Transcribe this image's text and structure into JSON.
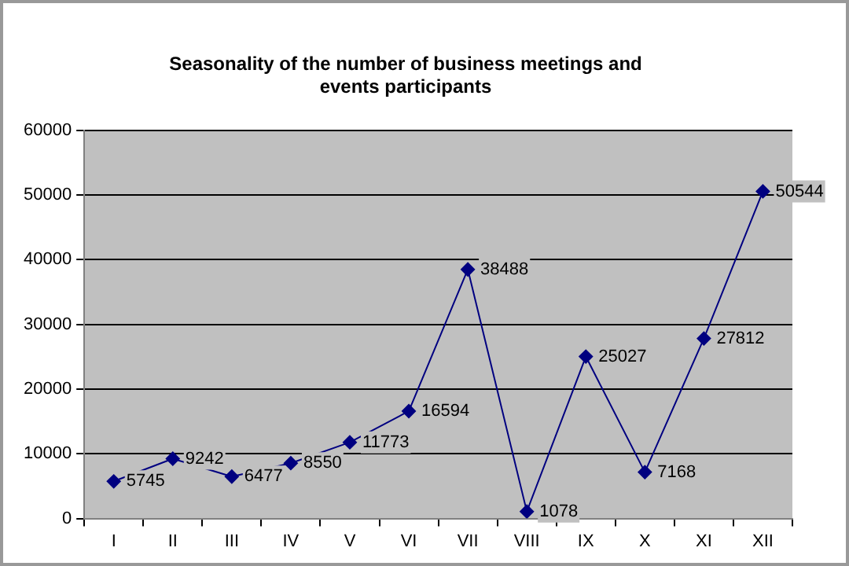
{
  "chart_data": {
    "type": "line",
    "title": "Seasonality of the number of business meetings and events participants",
    "categories": [
      "I",
      "II",
      "III",
      "IV",
      "V",
      "VI",
      "VII",
      "VIII",
      "IX",
      "X",
      "XI",
      "XII"
    ],
    "series": [
      {
        "color": "#000080",
        "values": [
          5745,
          9242,
          6477,
          8550,
          11773,
          16594,
          38488,
          1078,
          25027,
          7168,
          27812,
          50544
        ]
      }
    ],
    "ylim": [
      0,
      60000
    ],
    "yticks": [
      0,
      10000,
      20000,
      30000,
      40000,
      50000,
      60000
    ],
    "grid": "y",
    "legend": false,
    "marker": "diamond",
    "line_style": "solid",
    "data_labels": true
  }
}
